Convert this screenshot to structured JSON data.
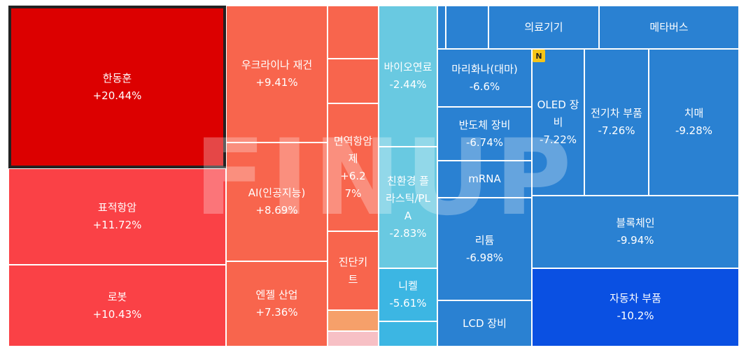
{
  "colors": {
    "strong_up": "#dc0000",
    "up_high": "#fa4146",
    "up_mid": "#f8654d",
    "up_low": "#f6a06a",
    "up_faint": "#f7c0c5",
    "down_faint": "#69c9e1",
    "down_light": "#3cb6e3",
    "down_mid": "#2a81d2",
    "down_strong": "#0a50e2"
  },
  "watermark": "FINUP",
  "badge": "N",
  "tiles": {
    "handong": {
      "name": "한동훈",
      "pct": "+20.44%",
      "change": 20.44
    },
    "pyojeok": {
      "name": "표적항암",
      "pct": "+11.72%",
      "change": 11.72
    },
    "robot": {
      "name": "로봇",
      "pct": "+10.43%",
      "change": 10.43
    },
    "ukraine": {
      "name": "우크라이나 재건",
      "pct": "+9.41%",
      "change": 9.41
    },
    "ai": {
      "name": "AI(인공지능)",
      "pct": "+8.69%",
      "change": 8.69
    },
    "engel": {
      "name": "엔젤 산업",
      "pct": "+7.36%",
      "change": 7.36
    },
    "myeonyeok": {
      "name": "면역항암제",
      "pct": "+6.27%",
      "change": 6.27
    },
    "jindan": {
      "name": "진단키트"
    },
    "bio": {
      "name": "바이오연료",
      "pct": "-2.44%",
      "change": -2.44
    },
    "eco": {
      "name": "친환경 플라스틱/PLA",
      "pct": "-2.83%",
      "change": -2.83
    },
    "nickel": {
      "name": "니켈",
      "pct": "-5.61%",
      "change": -5.61
    },
    "medical": {
      "name": "의료기기"
    },
    "meta": {
      "name": "메타버스"
    },
    "marijuana": {
      "name": "마리화나(대마)",
      "pct": "-6.6%",
      "change": -6.6
    },
    "semi": {
      "name": "반도체 장비",
      "pct": "-6.74%",
      "change": -6.74
    },
    "mrna": {
      "name": "mRNA"
    },
    "lithium": {
      "name": "리튬",
      "pct": "-6.98%",
      "change": -6.98
    },
    "lcd": {
      "name": "LCD 장비"
    },
    "oled": {
      "name": "OLED 장비",
      "pct": "-7.22%",
      "change": -7.22
    },
    "ev": {
      "name": "전기차 부품",
      "pct": "-7.26%",
      "change": -7.26
    },
    "dementia": {
      "name": "치매",
      "pct": "-9.28%",
      "change": -9.28
    },
    "block": {
      "name": "블록체인",
      "pct": "-9.94%",
      "change": -9.94
    },
    "auto": {
      "name": "자동차 부품",
      "pct": "-10.2%",
      "change": -10.2
    }
  }
}
